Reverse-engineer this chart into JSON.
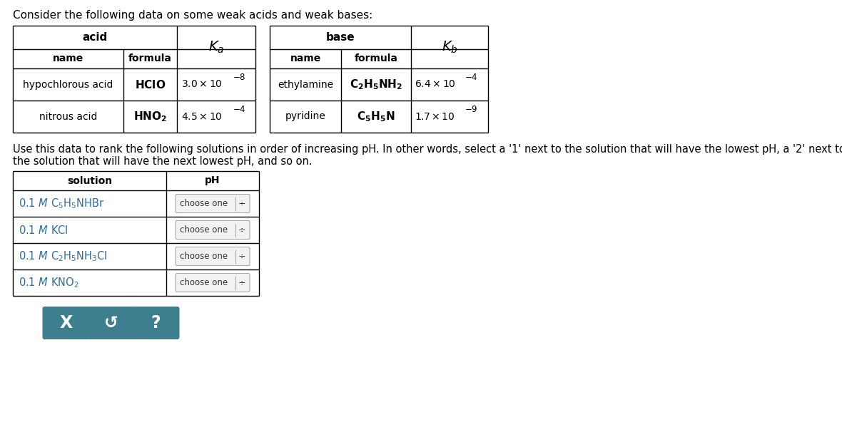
{
  "title": "Consider the following data on some weak acids and weak bases:",
  "title_color": "#000000",
  "title_fontsize": 11,
  "bg_color": "#ffffff",
  "text_color_blue": "#2e6da4",
  "text_color_dark": "#000000",
  "line1": "Use this data to rank the following solutions in order of increasing pH. In other words, select a '1' next to the solution that will have the lowest pH, a '2' next to",
  "line2": "the solution that will have the next lowest pH, and so on.",
  "acid_header": "acid",
  "base_header": "base",
  "ka_label": "$K_a$",
  "kb_label": "$K_b$",
  "col_name": "name",
  "col_formula": "formula",
  "acid_rows": [
    {
      "name": "hypochlorous acid",
      "formula": "HClO",
      "k": "3.0",
      "exp": "-8"
    },
    {
      "name": "nitrous acid",
      "formula": "HNO_2",
      "k": "4.5",
      "exp": "-4"
    }
  ],
  "base_rows": [
    {
      "name": "ethylamine",
      "formula": "C_2H_5NH_2",
      "k": "6.4",
      "exp": "-4"
    },
    {
      "name": "pyridine",
      "formula": "C_5H_5N",
      "k": "1.7",
      "exp": "-9"
    }
  ],
  "sol_header1": "solution",
  "sol_header2": "pH",
  "sol_labels": [
    "0.1 $\\it{M}$ C$_5$H$_5$NHBr",
    "0.1 $\\it{M}$ KCl",
    "0.1 $\\it{M}$ C$_2$H$_5$NH$_3$Cl",
    "0.1 $\\it{M}$ KNO$_2$"
  ],
  "choose_text": "choose one",
  "button_color": "#3d7f8f",
  "button_syms": [
    "X",
    "↺",
    "?"
  ],
  "table_line_color": "#000000",
  "dropdown_edge": "#aaaaaa",
  "dropdown_face": "#f2f2f2",
  "dropdown_text": "#333333"
}
